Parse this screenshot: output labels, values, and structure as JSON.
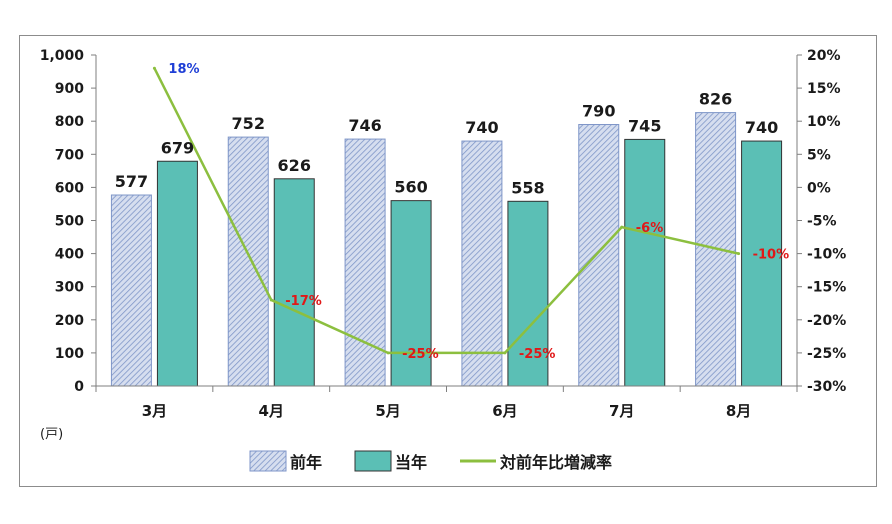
{
  "unit_label": "(戸)",
  "legend": [
    "前年",
    "当年",
    "対前年比増減率"
  ],
  "colors": {
    "prev_fill": "#d6deef",
    "prev_hatch": "#7f96c8",
    "prev_stroke": "#7f96c8",
    "curr_fill": "#5bbfb5",
    "curr_stroke": "#333333",
    "line": "#8cbf3f",
    "label_pos": "#1f3fd6",
    "label_neg": "#e01818"
  },
  "chart_data": {
    "type": "bar",
    "categories": [
      "3月",
      "4月",
      "5月",
      "6月",
      "7月",
      "8月"
    ],
    "series": [
      {
        "name": "前年",
        "type": "bar",
        "values": [
          577,
          752,
          746,
          740,
          790,
          826
        ]
      },
      {
        "name": "当年",
        "type": "bar",
        "values": [
          679,
          626,
          560,
          558,
          745,
          740
        ]
      },
      {
        "name": "対前年比増減率",
        "type": "line",
        "axis": "right",
        "values": [
          18,
          -17,
          -25,
          -25,
          -6,
          -10
        ]
      }
    ],
    "point_labels": [
      "18%",
      "-17%",
      "-25%",
      "-25%",
      "-6%",
      "-10%"
    ],
    "ylim": [
      0,
      1000
    ],
    "y_ticks": [
      "0",
      "100",
      "200",
      "300",
      "400",
      "500",
      "600",
      "700",
      "800",
      "900",
      "1,000"
    ],
    "y2lim": [
      -30,
      20
    ],
    "y2_ticks": [
      "-30%",
      "-25%",
      "-20%",
      "-15%",
      "-10%",
      "-5%",
      "0%",
      "5%",
      "10%",
      "15%",
      "20%"
    ],
    "legend_position": "bottom",
    "grid": false
  }
}
